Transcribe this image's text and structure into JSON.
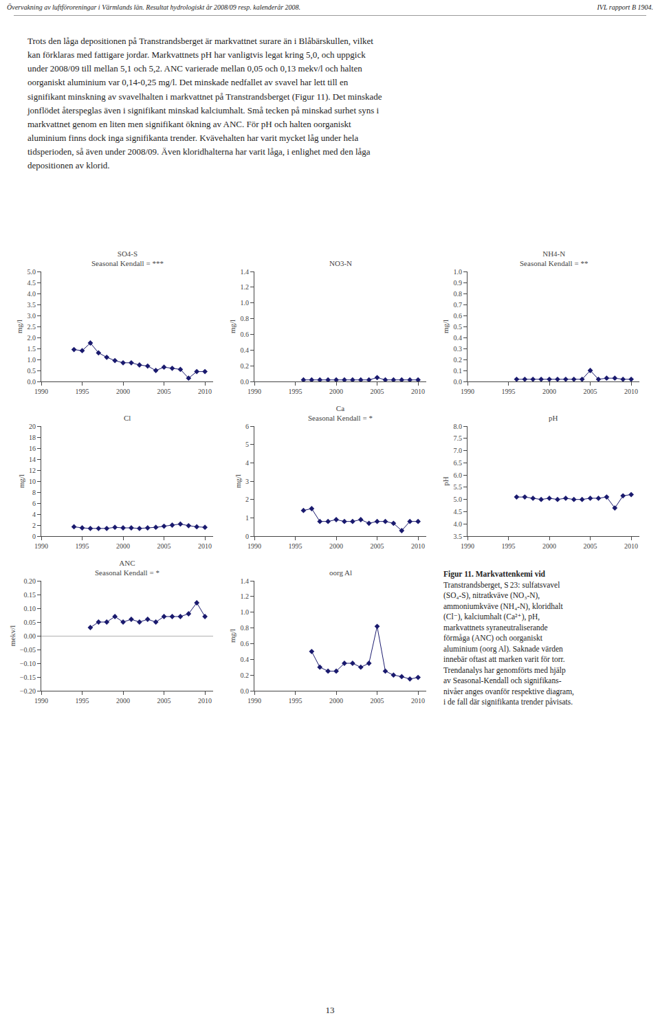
{
  "annotations": [
    "Övervakning av luftföroreningar i Värmlands län. Resultat hydrologiskt år 2008/09 resp. kalenderår 2008.",
    "IVL rapport B 1904.",
    "Trots den låga depositionen på Transtrandsberget är markvattnet surare än i Blåbärskullen, vilket\nkan förklaras med fattigare jordar. Markvattnets pH har vanligtvis legat kring 5,0, och uppgick\nunder 2008/09 till mellan 5,1 och 5,2. ANC varierade mellan 0,05 och 0,13 mekv/l och halten\noorganiskt aluminium var 0,14-0,25 mg/l. Det minskade nedfallet av svavel har lett till en\nsignifikant minskning av svavelhalten i markvattnet på Transtrandsberget (Figur 11). Det minskade\njonflödet återspeglas även i signifikant minskad kalciumhalt. Små tecken på minskad surhet syns i\nmarkvattnet genom en liten men signifikant ökning av ANC. För pH och halten oorganiskt\naluminium finns dock inga signifikanta trender. Kvävehalten har varit mycket låg under hela\ntidsperioden, så även under 2008/09. Även kloridhalterna har varit låga, i enlighet med den låga\ndepositionen av klorid.",
    "Figur 11. Markvattenkemi vid\nTranstrandsberget, S 23: sulfatsvavel\n(SO₄-S), nitratkväve (NO₃-N),\nammoniumkväve (NH₄-N), kloridhalt\n(Cl⁻), kalciumhalt (Ca²⁺), pH,\nmarkvattnets syraneutraliserande\nförmåga (ANC) och oorganiskt\naluminium (oorg Al). Saknade värden\ninnebär oftast att marken varit för torr.\nTrendanalys har genomförts med hjälp\nav Seasonal-Kendall och signifikans-\nnivåer anges ovanför respektive diagram,\ni de fall där signifikanta trender påvisats.",
    "13"
  ],
  "chart_data": [
    {
      "type": "line",
      "title": "SO4-S",
      "subtitle": "Seasonal Kendall = ***",
      "ylabel": "mg/l",
      "color": "#1a1a6e",
      "marker": "diamond",
      "grid": false,
      "xlim": [
        1990,
        2011
      ],
      "xticks": [
        1990,
        1995,
        2000,
        2005,
        2010
      ],
      "ylim": [
        0.0,
        5.0
      ],
      "yticks": [
        {
          "value": 0.0,
          "label": "0.0"
        },
        0.5,
        {
          "value": 1.0,
          "label": "1.0"
        },
        1.5,
        {
          "value": 2.0,
          "label": "2.0"
        },
        2.5,
        {
          "value": 3.0,
          "label": "3.0"
        },
        3.5,
        {
          "value": 4.0,
          "label": "4.0"
        },
        4.5,
        {
          "value": 5.0,
          "label": "5.0"
        }
      ],
      "x": [
        1994,
        1995,
        1996,
        1997,
        1998,
        1999,
        2000,
        2001,
        2002,
        2003,
        2004,
        2005,
        2006,
        2007,
        2008,
        2009,
        2010
      ],
      "values": [
        1.45,
        1.4,
        1.75,
        1.3,
        1.1,
        0.95,
        0.85,
        0.85,
        0.75,
        0.7,
        0.5,
        0.65,
        0.6,
        0.55,
        0.15,
        0.45,
        0.45
      ]
    },
    {
      "type": "line",
      "title": "NO3-N",
      "ylabel": "mg/l",
      "color": "#1a1a6e",
      "marker": "diamond",
      "grid": false,
      "xlim": [
        1990,
        2011
      ],
      "xticks": [
        1990,
        1995,
        2000,
        2005,
        2010
      ],
      "ylim": [
        0.0,
        1.4
      ],
      "yticks": [
        {
          "value": 0.0,
          "label": "0.0"
        },
        0.2,
        0.4,
        0.6,
        0.8,
        {
          "value": 1.0,
          "label": "1.0"
        },
        1.2,
        1.4
      ],
      "x": [
        1996,
        1997,
        1998,
        1999,
        2000,
        2001,
        2002,
        2003,
        2004,
        2005,
        2006,
        2007,
        2008,
        2009,
        2010
      ],
      "values": [
        0.02,
        0.02,
        0.02,
        0.02,
        0.02,
        0.02,
        0.02,
        0.02,
        0.02,
        0.05,
        0.02,
        0.02,
        0.02,
        0.02,
        0.02
      ]
    },
    {
      "type": "line",
      "title": "NH4-N",
      "subtitle": "Seasonal Kendall = **",
      "ylabel": "mg/l",
      "color": "#1a1a6e",
      "marker": "diamond",
      "grid": false,
      "xlim": [
        1990,
        2011
      ],
      "xticks": [
        1990,
        1995,
        2000,
        2005,
        2010
      ],
      "ylim": [
        0.0,
        1.0
      ],
      "yticks": [
        {
          "value": 0.0,
          "label": "0.0"
        },
        0.1,
        0.2,
        0.3,
        0.4,
        0.5,
        0.6,
        0.7,
        0.8,
        0.9,
        {
          "value": 1.0,
          "label": "1.0"
        }
      ],
      "x": [
        1996,
        1997,
        1998,
        1999,
        2000,
        2001,
        2002,
        2003,
        2004,
        2005,
        2006,
        2007,
        2008,
        2009,
        2010
      ],
      "values": [
        0.02,
        0.02,
        0.02,
        0.02,
        0.02,
        0.02,
        0.02,
        0.02,
        0.02,
        0.1,
        0.02,
        0.03,
        0.03,
        0.02,
        0.02
      ]
    },
    {
      "type": "line",
      "title": "Cl",
      "ylabel": "mg/l",
      "color": "#1a1a6e",
      "marker": "diamond",
      "grid": false,
      "xlim": [
        1990,
        2011
      ],
      "xticks": [
        1990,
        1995,
        2000,
        2005,
        2010
      ],
      "ylim": [
        0,
        20
      ],
      "yticks": [
        0,
        2,
        4,
        6,
        8,
        10,
        12,
        14,
        16,
        18,
        20
      ],
      "x": [
        1994,
        1995,
        1996,
        1997,
        1998,
        1999,
        2000,
        2001,
        2002,
        2003,
        2004,
        2005,
        2006,
        2007,
        2008,
        2009,
        2010
      ],
      "values": [
        1.7,
        1.5,
        1.4,
        1.4,
        1.4,
        1.6,
        1.5,
        1.5,
        1.4,
        1.5,
        1.6,
        1.8,
        2.0,
        2.2,
        1.9,
        1.7,
        1.6
      ]
    },
    {
      "type": "line",
      "title": "Ca",
      "subtitle": "Seasonal Kendall = *",
      "ylabel": "mg/l",
      "color": "#1a1a6e",
      "marker": "diamond",
      "grid": false,
      "xlim": [
        1990,
        2011
      ],
      "xticks": [
        1990,
        1995,
        2000,
        2005,
        2010
      ],
      "ylim": [
        0.0,
        6.0
      ],
      "yticks": [
        0,
        1,
        2,
        3,
        4,
        5,
        6
      ],
      "x": [
        1996,
        1997,
        1998,
        1999,
        2000,
        2001,
        2002,
        2003,
        2004,
        2005,
        2006,
        2007,
        2008,
        2009,
        2010
      ],
      "values": [
        1.4,
        1.5,
        0.8,
        0.8,
        0.9,
        0.8,
        0.8,
        0.9,
        0.7,
        0.8,
        0.8,
        0.7,
        0.3,
        0.8,
        0.8
      ]
    },
    {
      "type": "line",
      "title": "pH",
      "ylabel": "pH",
      "color": "#1a1a6e",
      "marker": "diamond",
      "grid": false,
      "xlim": [
        1990,
        2011
      ],
      "xticks": [
        1990,
        1995,
        2000,
        2005,
        2010
      ],
      "ylim": [
        3.5,
        8.0
      ],
      "yticks": [
        3.5,
        {
          "value": 4.0,
          "label": "4.0"
        },
        4.5,
        {
          "value": 5.0,
          "label": "5.0"
        },
        5.5,
        {
          "value": 6.0,
          "label": "6.0"
        },
        6.5,
        {
          "value": 7.0,
          "label": "7.0"
        },
        7.5,
        {
          "value": 8.0,
          "label": "8.0"
        }
      ],
      "x": [
        1996,
        1997,
        1998,
        1999,
        2000,
        2001,
        2002,
        2003,
        2004,
        2005,
        2006,
        2007,
        2008,
        2009,
        2010
      ],
      "values": [
        5.1,
        5.1,
        5.05,
        5.0,
        5.05,
        5.0,
        5.05,
        5.0,
        5.0,
        5.05,
        5.05,
        5.1,
        4.65,
        5.15,
        5.2
      ]
    },
    {
      "type": "line",
      "title": "ANC",
      "subtitle": "Seasonal Kendall = *",
      "ylabel": "mekv/l",
      "color": "#1a1a6e",
      "marker": "diamond",
      "grid": false,
      "xlim": [
        1990,
        2011
      ],
      "xticks": [
        1990,
        1995,
        2000,
        2005,
        2010
      ],
      "ylim": [
        -0.2,
        0.2
      ],
      "yticks": [
        {
          "value": -0.2,
          "label": "−0.20"
        },
        {
          "value": -0.15,
          "label": "−0.15"
        },
        {
          "value": -0.1,
          "label": "−0.10"
        },
        {
          "value": -0.05,
          "label": "−0.05"
        },
        {
          "value": 0.0,
          "label": "0.00"
        },
        0.05,
        {
          "value": 0.1,
          "label": "0.10"
        },
        0.15,
        {
          "value": 0.2,
          "label": "0.20"
        }
      ],
      "x": [
        1996,
        1997,
        1998,
        1999,
        2000,
        2001,
        2002,
        2003,
        2004,
        2005,
        2006,
        2007,
        2008,
        2009,
        2010
      ],
      "values": [
        0.03,
        0.05,
        0.05,
        0.07,
        0.05,
        0.06,
        0.05,
        0.06,
        0.05,
        0.07,
        0.07,
        0.07,
        0.08,
        0.12,
        0.07
      ]
    },
    {
      "type": "line",
      "title": "oorg Al",
      "ylabel": "mg/l",
      "color": "#1a1a6e",
      "marker": "diamond",
      "grid": false,
      "xlim": [
        1990,
        2011
      ],
      "xticks": [
        1990,
        1995,
        2000,
        2005,
        2010
      ],
      "ylim": [
        0.0,
        1.4
      ],
      "yticks": [
        {
          "value": 0.0,
          "label": "0.0"
        },
        0.2,
        0.4,
        0.6,
        0.8,
        {
          "value": 1.0,
          "label": "1.0"
        },
        1.2,
        1.4
      ],
      "x": [
        1997,
        1998,
        1999,
        2000,
        2001,
        2002,
        2003,
        2004,
        2005,
        2006,
        2007,
        2008,
        2009,
        2010
      ],
      "values": [
        0.5,
        0.3,
        0.25,
        0.25,
        0.35,
        0.35,
        0.3,
        0.35,
        0.82,
        0.25,
        0.2,
        0.18,
        0.15,
        0.17
      ]
    }
  ]
}
